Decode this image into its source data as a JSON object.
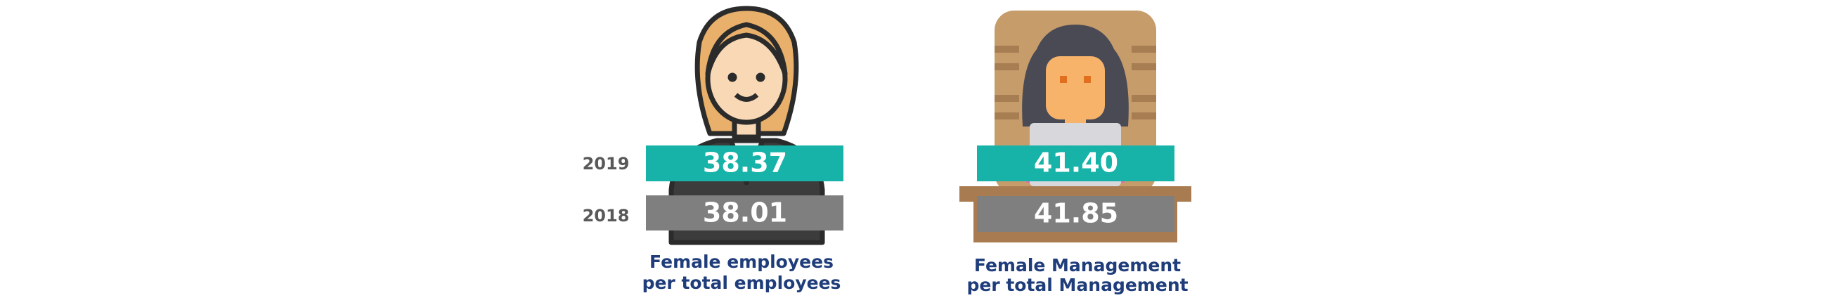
{
  "years": [
    "2019",
    "2018"
  ],
  "panels": [
    {
      "values": [
        "38.37",
        "38.01"
      ],
      "caption": [
        "Female employees",
        "per total employees"
      ]
    },
    {
      "values": [
        "41.40",
        "41.85"
      ],
      "caption": [
        "Female Management",
        "per total Management"
      ]
    }
  ]
}
